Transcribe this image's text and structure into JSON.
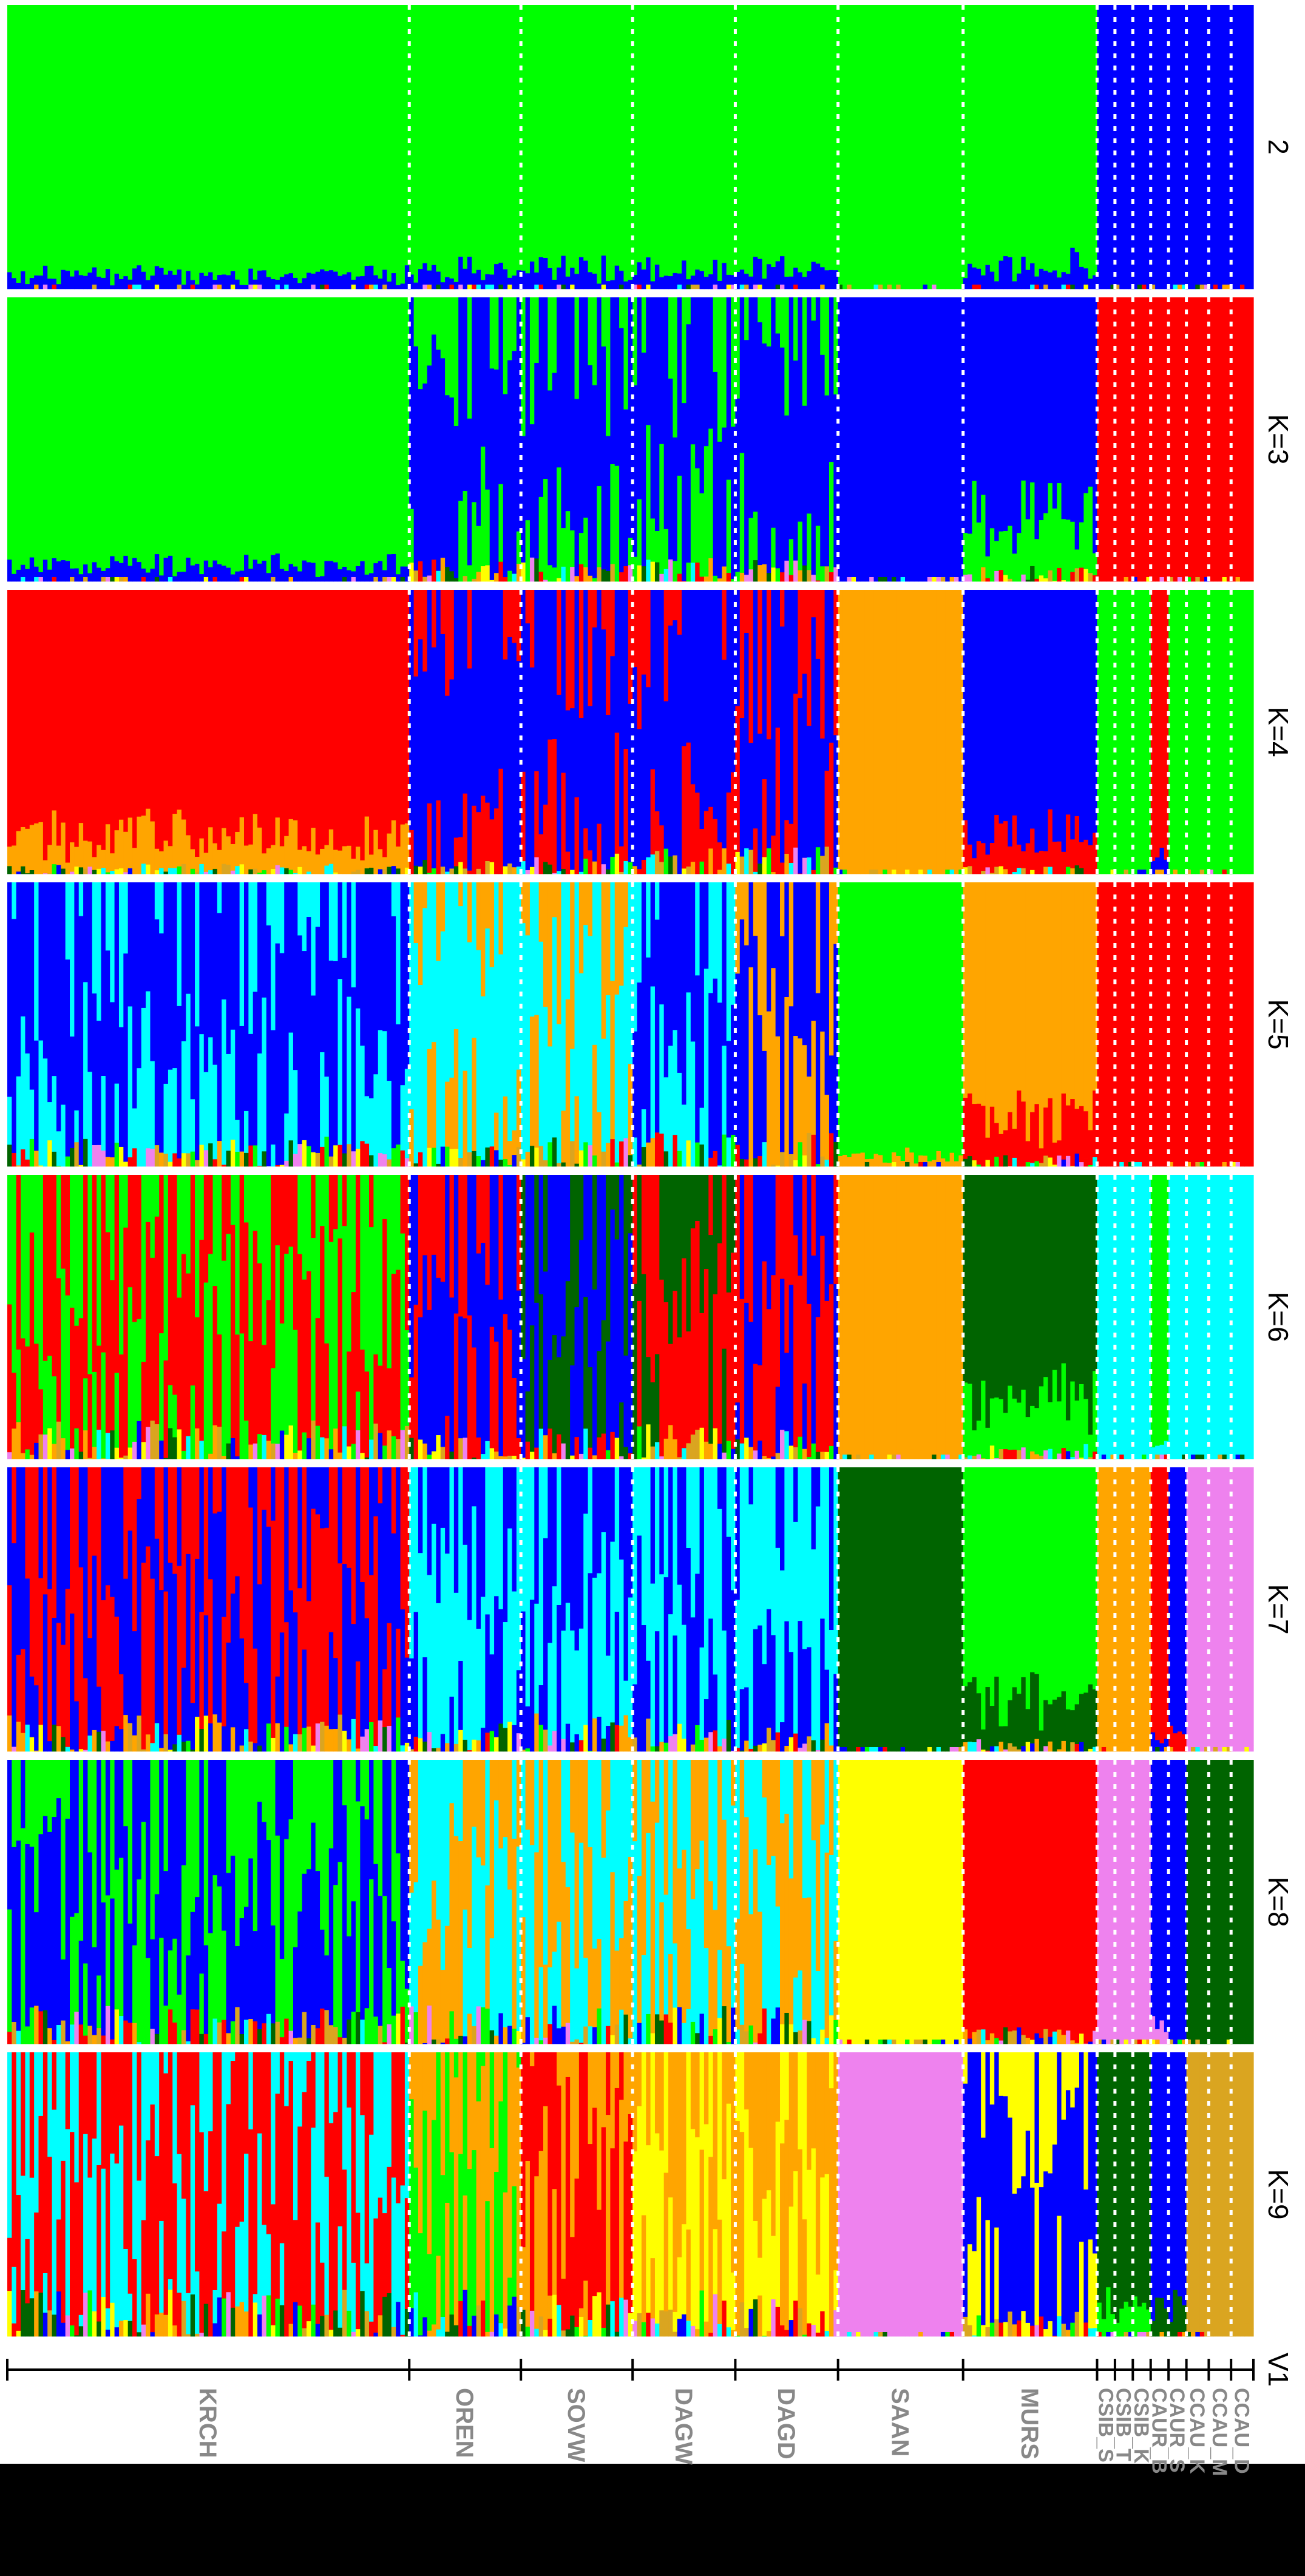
{
  "chart_data": {
    "type": "bar",
    "subtype": "stacked-admixture",
    "orientation": "rotated-90",
    "axis_label": "V1",
    "panels": [
      "2",
      "K=3",
      "K=4",
      "K=5",
      "K=6",
      "K=7",
      "K=8",
      "K=9"
    ],
    "populations": [
      {
        "name": "KRCH",
        "size": 90
      },
      {
        "name": "OREN",
        "size": 25
      },
      {
        "name": "SOVW",
        "size": 25
      },
      {
        "name": "DAGW",
        "size": 23
      },
      {
        "name": "DAGD",
        "size": 23
      },
      {
        "name": "SAAN",
        "size": 28
      },
      {
        "name": "MURS",
        "size": 30
      },
      {
        "name": "CSIB_S",
        "size": 4
      },
      {
        "name": "CSIB_T",
        "size": 4
      },
      {
        "name": "CSIB_K",
        "size": 4
      },
      {
        "name": "CAUR_B",
        "size": 4
      },
      {
        "name": "CAUR_S",
        "size": 4
      },
      {
        "name": "CCAU_K",
        "size": 5
      },
      {
        "name": "CCAU_M",
        "size": 5
      },
      {
        "name": "CCAU_D",
        "size": 5
      }
    ],
    "cluster_colors": {
      "green": "#00ff00",
      "blue": "#0000ff",
      "red": "#ff0000",
      "orange": "#ffa500",
      "cyan": "#00ffff",
      "darkgreen": "#006400",
      "violet": "#ee82ee",
      "yellow": "#ffff00",
      "goldenrod": "#daa520"
    },
    "dominant_cluster_by_panel": [
      [
        "green",
        "green",
        "green",
        "green",
        "green",
        "green",
        "green",
        "blue",
        "blue",
        "blue",
        "blue",
        "blue",
        "blue",
        "blue",
        "blue"
      ],
      [
        "green",
        "blue",
        "blue",
        "blue",
        "blue",
        "blue",
        "blue",
        "red",
        "red",
        "red",
        "red",
        "red",
        "red",
        "red",
        "red"
      ],
      [
        "red",
        "blue",
        "blue",
        "blue",
        "blue",
        "orange",
        "blue",
        "green",
        "green",
        "green",
        "red",
        "green",
        "green",
        "green",
        "green"
      ],
      [
        "blue",
        "cyan",
        "cyan",
        "blue",
        "blue",
        "green",
        "orange",
        "red",
        "red",
        "red",
        "red",
        "red",
        "red",
        "red",
        "red"
      ],
      [
        "red",
        "blue",
        "blue",
        "red",
        "red",
        "orange",
        "darkgreen",
        "cyan",
        "cyan",
        "cyan",
        "green",
        "cyan",
        "cyan",
        "cyan",
        "cyan"
      ],
      [
        "red",
        "cyan",
        "cyan",
        "cyan",
        "cyan",
        "darkgreen",
        "green",
        "orange",
        "orange",
        "orange",
        "red",
        "blue",
        "violet",
        "violet",
        "violet"
      ],
      [
        "blue",
        "cyan",
        "orange",
        "orange",
        "orange",
        "yellow",
        "red",
        "violet",
        "violet",
        "violet",
        "blue",
        "blue",
        "darkgreen",
        "darkgreen",
        "darkgreen"
      ],
      [
        "cyan",
        "green",
        "orange",
        "yellow",
        "yellow",
        "violet",
        "blue",
        "darkgreen",
        "darkgreen",
        "darkgreen",
        "blue",
        "blue",
        "goldenrod",
        "goldenrod",
        "goldenrod"
      ]
    ],
    "secondary_cluster_by_panel": [
      [
        "blue",
        "blue",
        "blue",
        "blue",
        "blue",
        "green",
        "blue",
        "blue",
        "blue",
        "blue",
        "blue",
        "blue",
        "blue",
        "blue",
        "blue"
      ],
      [
        "blue",
        "green",
        "green",
        "green",
        "green",
        "blue",
        "green",
        "red",
        "red",
        "red",
        "red",
        "red",
        "red",
        "red",
        "red"
      ],
      [
        "orange",
        "red",
        "red",
        "red",
        "red",
        "orange",
        "red",
        "green",
        "green",
        "green",
        "blue",
        "green",
        "green",
        "green",
        "green"
      ],
      [
        "cyan",
        "orange",
        "orange",
        "cyan",
        "orange",
        "orange",
        "red",
        "red",
        "red",
        "red",
        "red",
        "red",
        "red",
        "red",
        "red"
      ],
      [
        "green",
        "red",
        "darkgreen",
        "darkgreen",
        "blue",
        "orange",
        "green",
        "cyan",
        "cyan",
        "cyan",
        "cyan",
        "cyan",
        "cyan",
        "cyan",
        "cyan"
      ],
      [
        "blue",
        "blue",
        "blue",
        "blue",
        "blue",
        "darkgreen",
        "darkgreen",
        "orange",
        "orange",
        "orange",
        "blue",
        "red",
        "violet",
        "violet",
        "violet"
      ],
      [
        "green",
        "orange",
        "cyan",
        "cyan",
        "cyan",
        "yellow",
        "red",
        "violet",
        "violet",
        "violet",
        "violet",
        "blue",
        "darkgreen",
        "darkgreen",
        "darkgreen"
      ],
      [
        "red",
        "orange",
        "red",
        "orange",
        "orange",
        "violet",
        "yellow",
        "green",
        "green",
        "green",
        "darkgreen",
        "darkgreen",
        "goldenrod",
        "goldenrod",
        "goldenrod"
      ]
    ],
    "mixing_by_panel": [
      [
        0.04,
        0.06,
        0.06,
        0.06,
        0.06,
        0.1,
        0.08,
        0.0,
        0.0,
        0.0,
        0.0,
        0.0,
        0.0,
        0.0,
        0.0
      ],
      [
        0.05,
        0.28,
        0.3,
        0.3,
        0.26,
        0.02,
        0.2,
        0.0,
        0.0,
        0.0,
        0.0,
        0.0,
        0.0,
        0.0,
        0.0
      ],
      [
        0.12,
        0.22,
        0.28,
        0.3,
        0.32,
        0.02,
        0.12,
        0.02,
        0.02,
        0.02,
        0.05,
        0.02,
        0.02,
        0.02,
        0.02
      ],
      [
        0.35,
        0.25,
        0.35,
        0.4,
        0.42,
        0.03,
        0.15,
        0.0,
        0.0,
        0.0,
        0.0,
        0.0,
        0.0,
        0.0,
        0.0
      ],
      [
        0.45,
        0.3,
        0.4,
        0.45,
        0.4,
        0.02,
        0.18,
        0.02,
        0.02,
        0.02,
        0.05,
        0.02,
        0.02,
        0.02,
        0.02
      ],
      [
        0.45,
        0.35,
        0.45,
        0.4,
        0.35,
        0.04,
        0.15,
        0.02,
        0.02,
        0.02,
        0.05,
        0.05,
        0.03,
        0.03,
        0.03
      ],
      [
        0.45,
        0.45,
        0.45,
        0.45,
        0.45,
        0.03,
        0.2,
        0.03,
        0.03,
        0.03,
        0.05,
        0.05,
        0.05,
        0.05,
        0.05
      ],
      [
        0.55,
        0.55,
        0.55,
        0.55,
        0.5,
        0.03,
        0.3,
        0.1,
        0.1,
        0.1,
        0.1,
        0.1,
        0.05,
        0.05,
        0.05
      ]
    ]
  }
}
